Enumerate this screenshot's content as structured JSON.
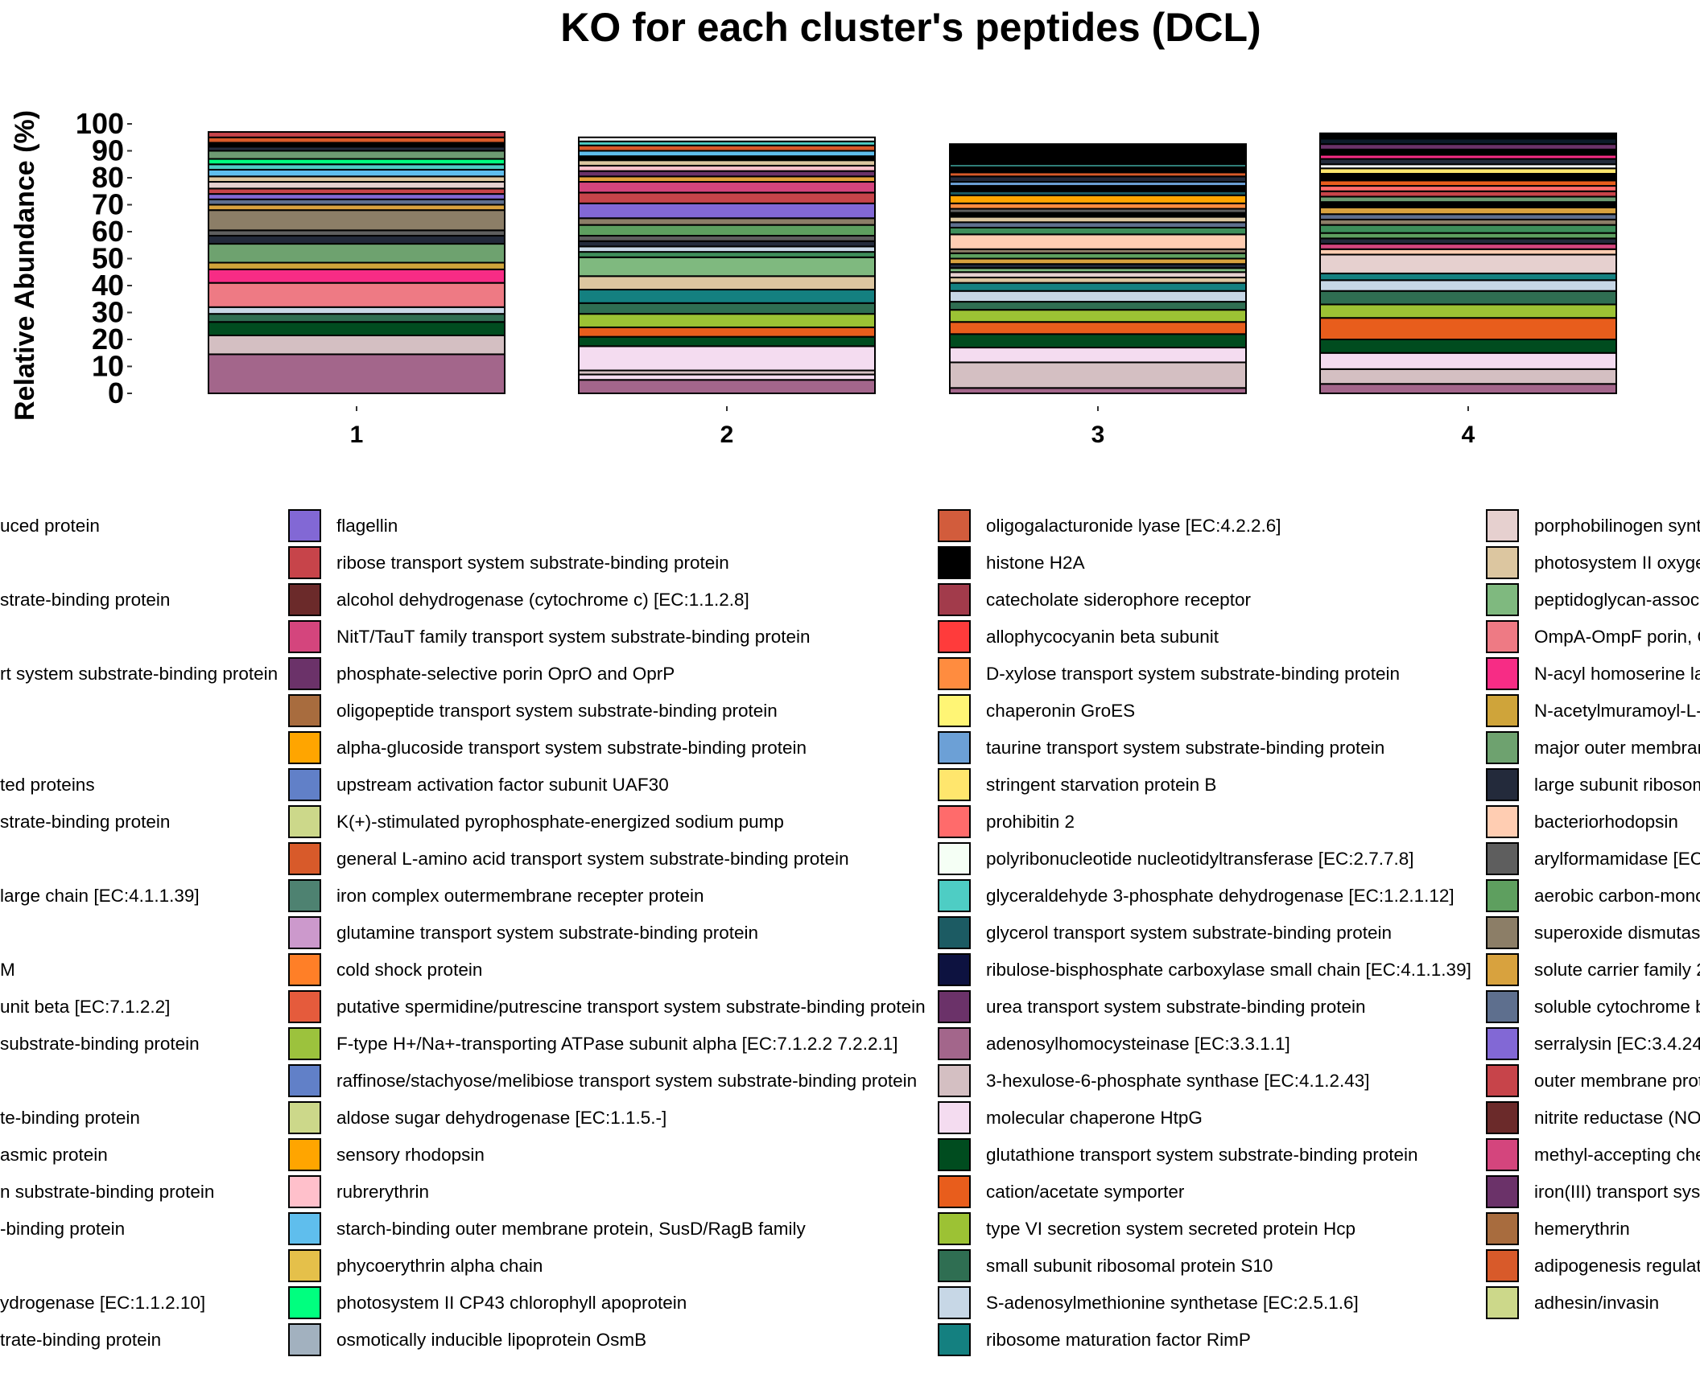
{
  "chart_data": {
    "type": "bar",
    "stacked": true,
    "title": "KO for each cluster's peptides (DCL)",
    "ylabel": "Relative Abundance (%)",
    "xlabel": "",
    "ylim": [
      0,
      100
    ],
    "yticks": [
      0,
      10,
      20,
      30,
      40,
      50,
      60,
      70,
      80,
      90,
      100
    ],
    "categories": [
      "1",
      "2",
      "3",
      "4"
    ],
    "stacks": [
      {
        "category": "1",
        "segments": [
          {
            "color": "#A3668B",
            "value": 14.5
          },
          {
            "color": "#D4BFC2",
            "value": 7
          },
          {
            "color": "#004C1F",
            "value": 5
          },
          {
            "color": "#2F6E52",
            "value": 3
          },
          {
            "color": "#C7D7E6",
            "value": 2.5
          },
          {
            "color": "#EE7A84",
            "value": 9
          },
          {
            "color": "#F72C85",
            "value": 5
          },
          {
            "color": "#CFA43A",
            "value": 2.5
          },
          {
            "color": "#6EA26F",
            "value": 7
          },
          {
            "color": "#232A3B",
            "value": 3
          },
          {
            "color": "#5E5E5E",
            "value": 2
          },
          {
            "color": "#8C7E67",
            "value": 7.5
          },
          {
            "color": "#D8A23E",
            "value": 2
          },
          {
            "color": "#5E6F8E",
            "value": 2
          },
          {
            "color": "#8268D5",
            "value": 2
          },
          {
            "color": "#C7444A",
            "value": 2
          },
          {
            "color": "#E6D0CF",
            "value": 2.5
          },
          {
            "color": "#DCC6A0",
            "value": 2
          },
          {
            "color": "#5FBEED",
            "value": 2.5
          },
          {
            "color": "#4ECDC4",
            "value": 2
          },
          {
            "color": "#00FF7F",
            "value": 2
          },
          {
            "color": "#6D9B72",
            "value": 3
          },
          {
            "color": "#232A3B",
            "value": 1.5
          },
          {
            "color": "#000000",
            "value": 1.5
          },
          {
            "color": "#D85A2A",
            "value": 2
          },
          {
            "color": "#C7444A",
            "value": 2
          }
        ]
      },
      {
        "category": "2",
        "segments": [
          {
            "color": "#A3668B",
            "value": 5
          },
          {
            "color": "#F4DCF0",
            "value": 2
          },
          {
            "color": "#D4BFC2",
            "value": 1.5
          },
          {
            "color": "#F4DCF0",
            "value": 9
          },
          {
            "color": "#004C1F",
            "value": 3.5
          },
          {
            "color": "#E85D1C",
            "value": 3.5
          },
          {
            "color": "#9CC234",
            "value": 5
          },
          {
            "color": "#2F6E52",
            "value": 4
          },
          {
            "color": "#148080",
            "value": 5
          },
          {
            "color": "#DCC6A0",
            "value": 5
          },
          {
            "color": "#7FB97F",
            "value": 7
          },
          {
            "color": "#3E8E5A",
            "value": 2
          },
          {
            "color": "#C7D7E6",
            "value": 2
          },
          {
            "color": "#232A3B",
            "value": 2
          },
          {
            "color": "#5E5E5E",
            "value": 2
          },
          {
            "color": "#5E9F5F",
            "value": 4
          },
          {
            "color": "#8C7E67",
            "value": 2.5
          },
          {
            "color": "#8268D5",
            "value": 5.5
          },
          {
            "color": "#C7444A",
            "value": 4
          },
          {
            "color": "#D4457D",
            "value": 4
          },
          {
            "color": "#E5A03A",
            "value": 2
          },
          {
            "color": "#6B3269",
            "value": 2
          },
          {
            "color": "#FFC0CB",
            "value": 2
          },
          {
            "color": "#DCC6A0",
            "value": 2
          },
          {
            "color": "#000000",
            "value": 1.5
          },
          {
            "color": "#5FBEED",
            "value": 2
          },
          {
            "color": "#D85A2A",
            "value": 2
          },
          {
            "color": "#4ECDC4",
            "value": 1.5
          },
          {
            "color": "#FFFFFF",
            "value": 1.5
          }
        ]
      },
      {
        "category": "3",
        "segments": [
          {
            "color": "#A3668B",
            "value": 2
          },
          {
            "color": "#D4BFC2",
            "value": 9.5
          },
          {
            "color": "#F4DCF0",
            "value": 5.5
          },
          {
            "color": "#004C1F",
            "value": 5
          },
          {
            "color": "#E85D1C",
            "value": 4.5
          },
          {
            "color": "#9CC234",
            "value": 4.5
          },
          {
            "color": "#2F6E52",
            "value": 3
          },
          {
            "color": "#C7D7E6",
            "value": 4
          },
          {
            "color": "#148080",
            "value": 3
          },
          {
            "color": "#DCC6A0",
            "value": 2
          },
          {
            "color": "#E6D0CF",
            "value": 2
          },
          {
            "color": "#7FB97F",
            "value": 1.5
          },
          {
            "color": "#232A3B",
            "value": 1.5
          },
          {
            "color": "#D8A23E",
            "value": 2
          },
          {
            "color": "#5E9F5F",
            "value": 2
          },
          {
            "color": "#8C7E67",
            "value": 1.5
          },
          {
            "color": "#FFCDB2",
            "value": 5.5
          },
          {
            "color": "#3E8E5A",
            "value": 2.5
          },
          {
            "color": "#5E6F8E",
            "value": 2
          },
          {
            "color": "#DCC6A0",
            "value": 2
          },
          {
            "color": "#000000",
            "value": 1.5
          },
          {
            "color": "#5E5E5E",
            "value": 1.5
          },
          {
            "color": "#FF8C3F",
            "value": 2
          },
          {
            "color": "#FFA500",
            "value": 3
          },
          {
            "color": "#1C5B63",
            "value": 1.5
          },
          {
            "color": "#000000",
            "value": 2
          },
          {
            "color": "#6CA0D6",
            "value": 1.5
          },
          {
            "color": "#232A3B",
            "value": 2
          },
          {
            "color": "#D85A2A",
            "value": 1.5
          },
          {
            "color": "#000000",
            "value": 2
          },
          {
            "color": "#4ECDC4",
            "value": 1
          },
          {
            "color": "#000000",
            "value": 7.5
          }
        ]
      },
      {
        "category": "4",
        "segments": [
          {
            "color": "#A3668B",
            "value": 3.5
          },
          {
            "color": "#D4BFC2",
            "value": 5.5
          },
          {
            "color": "#F4DCF0",
            "value": 6
          },
          {
            "color": "#004C1F",
            "value": 5
          },
          {
            "color": "#E85D1C",
            "value": 8
          },
          {
            "color": "#9CC234",
            "value": 5
          },
          {
            "color": "#2F6E52",
            "value": 5
          },
          {
            "color": "#C7D7E6",
            "value": 4
          },
          {
            "color": "#148080",
            "value": 2.5
          },
          {
            "color": "#E6D0CF",
            "value": 7
          },
          {
            "color": "#FFCDB2",
            "value": 2
          },
          {
            "color": "#D4457D",
            "value": 2
          },
          {
            "color": "#232A3B",
            "value": 2
          },
          {
            "color": "#5E9F5F",
            "value": 2
          },
          {
            "color": "#3E8E5A",
            "value": 3
          },
          {
            "color": "#8C7E67",
            "value": 2
          },
          {
            "color": "#5E6F8E",
            "value": 2
          },
          {
            "color": "#D8A23E",
            "value": 2.5
          },
          {
            "color": "#000000",
            "value": 2
          },
          {
            "color": "#6D9B72",
            "value": 2
          },
          {
            "color": "#C7444A",
            "value": 2
          },
          {
            "color": "#FF6B6B",
            "value": 2
          },
          {
            "color": "#E85D1C",
            "value": 2
          },
          {
            "color": "#000000",
            "value": 2.5
          },
          {
            "color": "#FFE66D",
            "value": 2
          },
          {
            "color": "#FFFFFF",
            "value": 1.5
          },
          {
            "color": "#232A3B",
            "value": 2
          },
          {
            "color": "#F72C85",
            "value": 1.5
          },
          {
            "color": "#000000",
            "value": 2
          },
          {
            "color": "#6B3269",
            "value": 2
          },
          {
            "color": "#0D1B2A",
            "value": 2
          },
          {
            "color": "#000000",
            "value": 2
          }
        ]
      }
    ],
    "legend_columns": [
      [
        {
          "label": "uced protein"
        },
        {
          "label": ""
        },
        {
          "label": "strate-binding protein"
        },
        {
          "label": ""
        },
        {
          "label": "rt system substrate-binding protein"
        },
        {
          "label": ""
        },
        {
          "label": ""
        },
        {
          "label": "ted proteins"
        },
        {
          "label": "strate-binding protein"
        },
        {
          "label": ""
        },
        {
          "label": "large chain [EC:4.1.1.39]"
        },
        {
          "label": ""
        },
        {
          "label": "M"
        },
        {
          "label": "unit beta [EC:7.1.2.2]"
        },
        {
          "label": " substrate-binding protein"
        },
        {
          "label": ""
        },
        {
          "label": "te-binding protein"
        },
        {
          "label": "asmic protein"
        },
        {
          "label": "n substrate-binding protein"
        },
        {
          "label": "-binding protein"
        },
        {
          "label": ""
        },
        {
          "label": "ydrogenase [EC:1.1.2.10]"
        },
        {
          "label": "trate-binding protein"
        }
      ],
      [
        {
          "label": "flagellin",
          "color": "#8268D5"
        },
        {
          "label": "ribose transport system substrate-binding protein",
          "color": "#C7444A"
        },
        {
          "label": "alcohol dehydrogenase (cytochrome c) [EC:1.1.2.8]",
          "color": "#6B2A2A"
        },
        {
          "label": "NitT/TauT family transport system substrate-binding protein",
          "color": "#D4457D"
        },
        {
          "label": "phosphate-selective porin OprO and OprP",
          "color": "#6B3269"
        },
        {
          "label": "oligopeptide transport system substrate-binding protein",
          "color": "#A86C3E"
        },
        {
          "label": "alpha-glucoside transport system substrate-binding protein",
          "color": "#FFA500"
        },
        {
          "label": "upstream activation factor subunit UAF30",
          "color": "#6180C8"
        },
        {
          "label": "K(+)-stimulated pyrophosphate-energized sodium pump",
          "color": "#CCD88A"
        },
        {
          "label": "general L-amino acid transport system substrate-binding protein",
          "color": "#D85A2A"
        },
        {
          "label": "iron complex outermembrane recepter protein",
          "color": "#4E8271"
        },
        {
          "label": "glutamine transport system substrate-binding protein",
          "color": "#CC99CC"
        },
        {
          "label": "cold shock protein",
          "color": "#FF7F27"
        },
        {
          "label": "putative spermidine/putrescine transport system substrate-binding protein",
          "color": "#E55B3C"
        },
        {
          "label": "F-type H+/Na+-transporting ATPase subunit alpha [EC:7.1.2.2 7.2.2.1]",
          "color": "#9CC23D"
        },
        {
          "label": "raffinose/stachyose/melibiose transport system substrate-binding protein",
          "color": "#6180C8"
        },
        {
          "label": "aldose sugar dehydrogenase [EC:1.1.5.-]",
          "color": "#CCD88A"
        },
        {
          "label": "sensory rhodopsin",
          "color": "#FFA500"
        },
        {
          "label": "rubrerythrin",
          "color": "#FFC0CB"
        },
        {
          "label": "starch-binding outer membrane protein, SusD/RagB family",
          "color": "#5FBEED"
        },
        {
          "label": "phycoerythrin alpha chain",
          "color": "#E5C04A"
        },
        {
          "label": "photosystem II CP43 chlorophyll apoprotein",
          "color": "#00FF7F"
        },
        {
          "label": "osmotically inducible lipoprotein OsmB",
          "color": "#A2B1BF"
        }
      ],
      [
        {
          "label": "oligogalacturonide lyase [EC:4.2.2.6]",
          "color": "#D25C3C"
        },
        {
          "label": "histone H2A",
          "color": "#000000"
        },
        {
          "label": "catecholate siderophore receptor",
          "color": "#A23B4B"
        },
        {
          "label": "allophycocyanin beta subunit",
          "color": "#FF3B3B"
        },
        {
          "label": "D-xylose transport system substrate-binding protein",
          "color": "#FF8C3F"
        },
        {
          "label": "chaperonin GroES",
          "color": "#FFF575"
        },
        {
          "label": "taurine transport system substrate-binding protein",
          "color": "#6CA0D6"
        },
        {
          "label": "stringent starvation protein B",
          "color": "#FFE66D"
        },
        {
          "label": "prohibitin 2",
          "color": "#FF6B6B"
        },
        {
          "label": "polyribonucleotide nucleotidyltransferase [EC:2.7.7.8]",
          "color": "#F5FFF5"
        },
        {
          "label": "glyceraldehyde 3-phosphate dehydrogenase [EC:1.2.1.12]",
          "color": "#4ECDC4"
        },
        {
          "label": "glycerol transport system substrate-binding protein",
          "color": "#1C5B63"
        },
        {
          "label": "ribulose-bisphosphate carboxylase small chain [EC:4.1.1.39]",
          "color": "#0D1240"
        },
        {
          "label": "urea transport system substrate-binding protein",
          "color": "#6B3269"
        },
        {
          "label": "adenosylhomocysteinase [EC:3.3.1.1]",
          "color": "#A3668B"
        },
        {
          "label": "3-hexulose-6-phosphate synthase [EC:4.1.2.43]",
          "color": "#D4BFC2"
        },
        {
          "label": "molecular chaperone HtpG",
          "color": "#F4DCF0"
        },
        {
          "label": "glutathione transport system substrate-binding protein",
          "color": "#004C1F"
        },
        {
          "label": "cation/acetate symporter",
          "color": "#E85D1C"
        },
        {
          "label": "type VI secretion system secreted protein Hcp",
          "color": "#9CC234"
        },
        {
          "label": "small subunit ribosomal protein S10",
          "color": "#2F6E52"
        },
        {
          "label": "S-adenosylmethionine synthetase [EC:2.5.1.6]",
          "color": "#C7D7E6"
        },
        {
          "label": "ribosome maturation factor RimP",
          "color": "#148080"
        }
      ],
      [
        {
          "label": "porphobilinogen synth",
          "color": "#E6D0CF"
        },
        {
          "label": "photosystem II oxyge",
          "color": "#DCC6A0"
        },
        {
          "label": "peptidoglycan-assoc",
          "color": "#7FB97F"
        },
        {
          "label": "OmpA-OmpF porin, O",
          "color": "#EE7A84"
        },
        {
          "label": "N-acyl homoserine la",
          "color": "#F72C85"
        },
        {
          "label": "N-acetylmuramoyl-L-",
          "color": "#CFA43A"
        },
        {
          "label": "major outer membran",
          "color": "#6EA26F"
        },
        {
          "label": "large subunit ribosom",
          "color": "#232A3B"
        },
        {
          "label": "bacteriorhodopsin",
          "color": "#FFCDB2"
        },
        {
          "label": "arylformamidase [EC",
          "color": "#5E5E5E"
        },
        {
          "label": "aerobic carbon-mono",
          "color": "#5E9F5F"
        },
        {
          "label": "superoxide dismutas",
          "color": "#8C7E67"
        },
        {
          "label": "solute carrier family 2",
          "color": "#D8A23E"
        },
        {
          "label": "soluble cytochrome b",
          "color": "#5E6F8E"
        },
        {
          "label": "serralysin [EC:3.4.24",
          "color": "#8268D5"
        },
        {
          "label": "outer membrane prot",
          "color": "#C7444A"
        },
        {
          "label": "nitrite reductase (NO",
          "color": "#6B2A2A"
        },
        {
          "label": "methyl-accepting che",
          "color": "#D4457D"
        },
        {
          "label": "iron(III) transport sys",
          "color": "#6B3269"
        },
        {
          "label": "hemerythrin",
          "color": "#A86C3E"
        },
        {
          "label": "adipogenesis regulat",
          "color": "#D85A2A"
        },
        {
          "label": "adhesin/invasin",
          "color": "#CCD88A"
        }
      ]
    ]
  }
}
